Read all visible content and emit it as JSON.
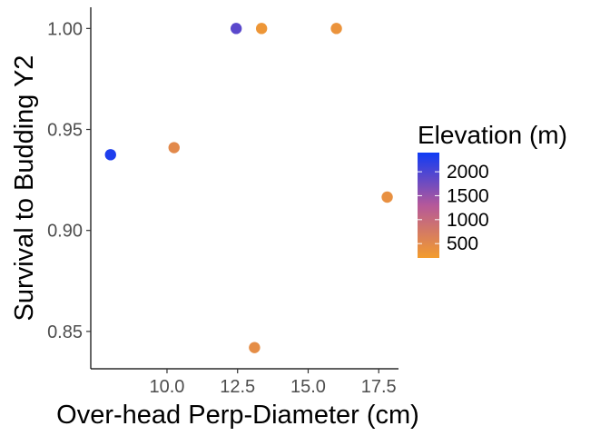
{
  "chart_data": {
    "type": "scatter",
    "xlabel": "Over-head Perp-Diameter (cm)",
    "ylabel": "Survival to Budding Y2",
    "xlim": [
      7.3,
      18.2
    ],
    "ylim": [
      0.8315,
      1.0105
    ],
    "x_ticks": [
      10.0,
      12.5,
      15.0,
      17.5
    ],
    "x_tick_labels": [
      "10.0",
      "12.5",
      "15.0",
      "17.5"
    ],
    "y_ticks": [
      0.85,
      0.9,
      0.95,
      1.0
    ],
    "y_tick_labels": [
      "0.85",
      "0.90",
      "0.95",
      "1.00"
    ],
    "grid": false,
    "points": [
      {
        "x": 8.0,
        "y": 0.9375,
        "elevation": 2300
      },
      {
        "x": 10.25,
        "y": 0.941,
        "elevation": 500
      },
      {
        "x": 12.45,
        "y": 1.0,
        "elevation": 1900
      },
      {
        "x": 13.35,
        "y": 1.0,
        "elevation": 300
      },
      {
        "x": 16.0,
        "y": 1.0,
        "elevation": 350
      },
      {
        "x": 17.8,
        "y": 0.9165,
        "elevation": 400
      },
      {
        "x": 13.1,
        "y": 0.842,
        "elevation": 450
      }
    ],
    "legend": {
      "title": "Elevation (m)",
      "placement": "right",
      "range": [
        200,
        2400
      ],
      "ticks": [
        500,
        1000,
        1500,
        2000
      ],
      "tick_labels": [
        "500",
        "1000",
        "1500",
        "2000"
      ],
      "color_low": "#f39c2d",
      "color_mid": "#b5589a",
      "color_high": "#0f3bf5"
    }
  }
}
